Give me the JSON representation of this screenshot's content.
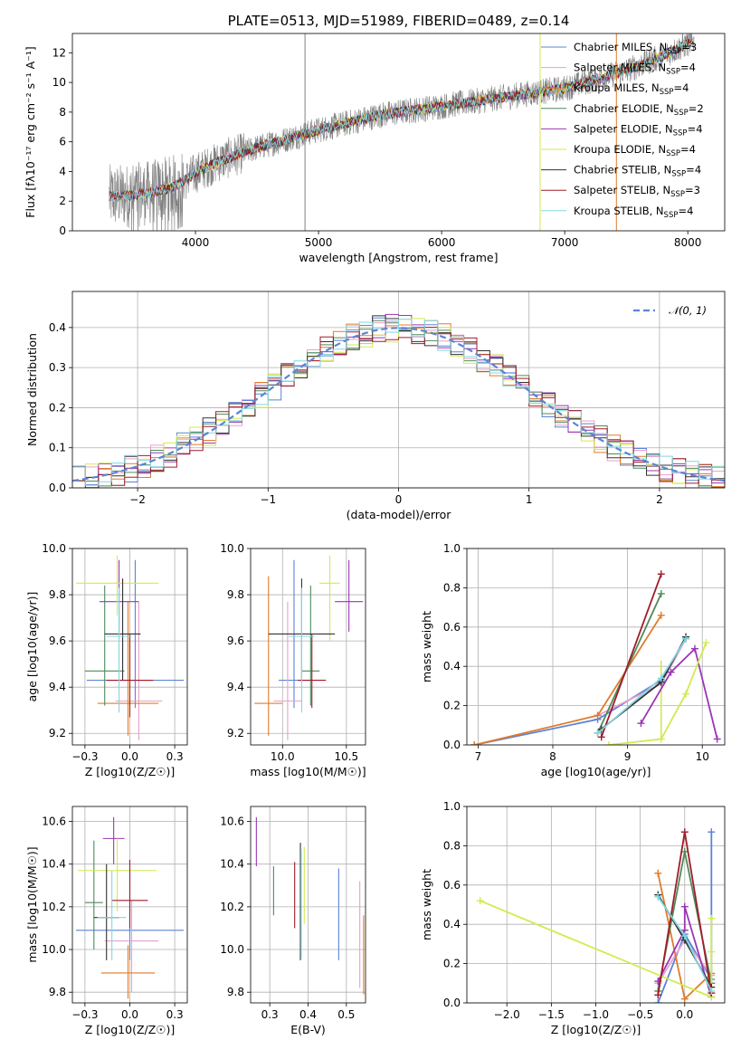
{
  "series": [
    {
      "name": "Chabrier MILES",
      "nssp": "3",
      "color": "#5b84d6"
    },
    {
      "name": "Salpeter MILES",
      "nssp": "4",
      "color": "#e8a0cc"
    },
    {
      "name": "Kroupa MILES",
      "nssp": "4",
      "color": "#e07b2c"
    },
    {
      "name": "Chabrier ELODIE",
      "nssp": "2",
      "color": "#4f8a5b"
    },
    {
      "name": "Salpeter ELODIE",
      "nssp": "4",
      "color": "#9b36b5"
    },
    {
      "name": "Kroupa ELODIE",
      "nssp": "4",
      "color": "#d2ea4e"
    },
    {
      "name": "Chabrier STELIB",
      "nssp": "4",
      "color": "#333333"
    },
    {
      "name": "Salpeter STELIB",
      "nssp": "3",
      "color": "#a01c2a"
    },
    {
      "name": "Kroupa STELIB",
      "nssp": "4",
      "color": "#83d6e1"
    }
  ],
  "chart_data": [
    {
      "id": "spectrum",
      "type": "line",
      "title": "PLATE=0513, MJD=51989, FIBERID=0489, z=0.14",
      "xlabel": "wavelength [Angstrom, rest frame]",
      "ylabel": "Flux [fλ10⁻¹⁷ erg cm⁻² s⁻¹ A⁻¹]",
      "xlim": [
        3000,
        8300
      ],
      "ylim": [
        0,
        13.3
      ],
      "xticks": [
        4000,
        5000,
        6000,
        7000,
        8000
      ],
      "yticks": [
        0,
        2,
        4,
        6,
        8,
        10,
        12
      ],
      "data_color": "#808080",
      "continuum": {
        "x": [
          3300,
          3500,
          3650,
          3800,
          3900,
          4000,
          4200,
          4500,
          5000,
          5500,
          6000,
          6500,
          7000,
          7500,
          7800,
          8050
        ],
        "y": [
          2.3,
          2.4,
          2.6,
          2.9,
          3.3,
          3.9,
          4.7,
          5.6,
          6.8,
          7.8,
          8.4,
          9.0,
          9.6,
          10.8,
          11.8,
          12.8
        ]
      },
      "vertical_lines": [
        {
          "x": 4890,
          "color": "#808080"
        },
        {
          "x": 6800,
          "color": "#d2ea4e"
        },
        {
          "x": 7420,
          "color": "#e07b2c"
        }
      ],
      "legend_position": "top-right",
      "grid": false
    },
    {
      "id": "residuals",
      "type": "histogram",
      "xlabel": "(data-model)/error",
      "ylabel": "Normed distribution",
      "xlim": [
        -2.5,
        2.5
      ],
      "ylim": [
        0,
        0.49
      ],
      "xticks": [
        -2,
        -1,
        0,
        1,
        2
      ],
      "yticks": [
        0.0,
        0.1,
        0.2,
        0.3,
        0.4
      ],
      "bin_width": 0.1,
      "reference": {
        "label": "𝒩(0, 1)",
        "mean": 0,
        "sigma": 1,
        "color": "#5b84d6"
      },
      "grid": true
    },
    {
      "id": "age-vs-Z",
      "type": "scatter",
      "xlabel": "Z [log10(Z/Z☉)]",
      "ylabel": "age  [log10(age/yr)]",
      "xlim": [
        -0.32,
        0.32
      ],
      "ylim": [
        9.15,
        10.0
      ],
      "xticks": [
        -0.25,
        0.0,
        0.25
      ],
      "yticks": [
        9.2,
        9.4,
        9.6,
        9.8,
        10.0
      ],
      "points": [
        {
          "s": 0,
          "x": 0.03,
          "y": 9.43,
          "xe": 0.27,
          "ylo": 9.31,
          "yhi": 9.95
        },
        {
          "s": 1,
          "x": 0.05,
          "y": 9.34,
          "xe": 0.13,
          "ylo": 9.17,
          "yhi": 9.77
        },
        {
          "s": 2,
          "x": -0.01,
          "y": 9.33,
          "xe": 0.17,
          "ylo": 9.19,
          "yhi": 9.77
        },
        {
          "s": 3,
          "x": -0.14,
          "y": 9.47,
          "xe": 0.11,
          "ylo": 9.32,
          "yhi": 9.84
        },
        {
          "s": 4,
          "x": -0.06,
          "y": 9.77,
          "xe": 0.11,
          "ylo": 9.64,
          "yhi": 9.95
        },
        {
          "s": 5,
          "x": -0.07,
          "y": 9.85,
          "xe": 0.23,
          "ylo": 9.71,
          "yhi": 9.97
        },
        {
          "s": 6,
          "x": -0.04,
          "y": 9.63,
          "xe": 0.1,
          "ylo": 9.43,
          "yhi": 9.87
        },
        {
          "s": 7,
          "x": 0.0,
          "y": 9.43,
          "xe": 0.13,
          "ylo": 9.27,
          "yhi": 9.63
        },
        {
          "s": 8,
          "x": -0.06,
          "y": 9.62,
          "xe": 0.07,
          "ylo": 9.29,
          "yhi": 9.83
        }
      ]
    },
    {
      "id": "age-vs-mass",
      "type": "scatter",
      "xlabel": "mass [log10(M/M☉)]",
      "ylabel": "",
      "xlim": [
        9.75,
        10.65
      ],
      "ylim": [
        9.15,
        10.0
      ],
      "xticks": [
        10.0,
        10.5
      ],
      "yticks": [
        9.2,
        9.4,
        9.6,
        9.8,
        10.0
      ],
      "points": [
        {
          "s": 0,
          "x": 10.09,
          "y": 9.43,
          "xe": 0.12,
          "ylo": 9.31,
          "yhi": 9.95
        },
        {
          "s": 1,
          "x": 10.04,
          "y": 9.34,
          "xe": 0.11,
          "ylo": 9.17,
          "yhi": 9.77
        },
        {
          "s": 2,
          "x": 9.89,
          "y": 9.33,
          "xe": 0.11,
          "ylo": 9.19,
          "yhi": 9.88
        },
        {
          "s": 3,
          "x": 10.22,
          "y": 9.47,
          "xe": 0.07,
          "ylo": 9.32,
          "yhi": 9.84
        },
        {
          "s": 4,
          "x": 10.52,
          "y": 9.77,
          "xe": 0.11,
          "ylo": 9.64,
          "yhi": 9.95
        },
        {
          "s": 5,
          "x": 10.37,
          "y": 9.85,
          "xe": 0.08,
          "ylo": 9.6,
          "yhi": 9.97
        },
        {
          "s": 6,
          "x": 10.15,
          "y": 9.63,
          "xe": 0.26,
          "ylo": 9.43,
          "yhi": 9.87
        },
        {
          "s": 7,
          "x": 10.23,
          "y": 9.43,
          "xe": 0.11,
          "ylo": 9.31,
          "yhi": 9.63
        },
        {
          "s": 8,
          "x": 10.15,
          "y": 9.62,
          "xe": 0.1,
          "ylo": 9.29,
          "yhi": 9.83
        }
      ]
    },
    {
      "id": "weights-vs-age",
      "type": "line",
      "xlabel": "age  [log10(age/yr)]",
      "ylabel": "mass weight",
      "xlim": [
        6.85,
        10.3
      ],
      "ylim": [
        0,
        1.0
      ],
      "xticks": [
        7,
        8,
        9,
        10
      ],
      "yticks": [
        0.0,
        0.2,
        0.4,
        0.6,
        0.8,
        1.0
      ],
      "grid": true,
      "series_points": [
        {
          "s": 0,
          "x": [
            6.95,
            8.6,
            9.45,
            9.78
          ],
          "y": [
            0.0,
            0.13,
            0.33,
            0.54
          ]
        },
        {
          "s": 1,
          "x": [
            8.6,
            9.45,
            9.78
          ],
          "y": [
            0.15,
            0.31,
            0.54
          ]
        },
        {
          "s": 2,
          "x": [
            6.95,
            8.6,
            9.45
          ],
          "y": [
            0.0,
            0.15,
            0.66
          ]
        },
        {
          "s": 3,
          "x": [
            8.6,
            9.45
          ],
          "y": [
            0.06,
            0.77
          ]
        },
        {
          "s": 4,
          "x": [
            9.18,
            9.58,
            9.9,
            10.2
          ],
          "y": [
            0.11,
            0.37,
            0.49,
            0.03
          ]
        },
        {
          "s": 5,
          "x": [
            8.75,
            9.45,
            9.78,
            10.05
          ],
          "y": [
            0.0,
            0.03,
            0.26,
            0.52
          ]
        },
        {
          "s": 6,
          "x": [
            8.65,
            9.45,
            9.78
          ],
          "y": [
            0.08,
            0.32,
            0.55
          ]
        },
        {
          "s": 7,
          "x": [
            8.65,
            9.45
          ],
          "y": [
            0.04,
            0.87
          ]
        },
        {
          "s": 8,
          "x": [
            8.6,
            9.45,
            9.78
          ],
          "y": [
            0.06,
            0.34,
            0.54
          ]
        }
      ],
      "vertical_lines": [
        {
          "x": 9.45,
          "color": "#d2ea4e",
          "from": 0.03,
          "to": 0.43
        }
      ]
    },
    {
      "id": "mass-vs-Z",
      "type": "scatter",
      "xlabel": "Z [log10(Z/Z☉)]",
      "ylabel": "mass [log10(M/M☉)]",
      "xlim": [
        -0.32,
        0.32
      ],
      "ylim": [
        9.75,
        10.67
      ],
      "xticks": [
        -0.25,
        0.0,
        0.25
      ],
      "yticks": [
        9.8,
        10.0,
        10.2,
        10.4,
        10.6
      ],
      "points": [
        {
          "s": 0,
          "x": 0.0,
          "y": 10.09,
          "xe": 0.3,
          "ylo": 9.95,
          "yhi": 10.38
        },
        {
          "s": 1,
          "x": 0.01,
          "y": 10.04,
          "xe": 0.15,
          "ylo": 9.8,
          "yhi": 10.23
        },
        {
          "s": 2,
          "x": -0.01,
          "y": 9.89,
          "xe": 0.15,
          "ylo": 9.77,
          "yhi": 10.02
        },
        {
          "s": 3,
          "x": -0.2,
          "y": 10.22,
          "xe": 0.05,
          "ylo": 10.0,
          "yhi": 10.51
        },
        {
          "s": 4,
          "x": -0.09,
          "y": 10.52,
          "xe": 0.06,
          "ylo": 10.4,
          "yhi": 10.62
        },
        {
          "s": 5,
          "x": -0.07,
          "y": 10.37,
          "xe": 0.22,
          "ylo": 10.18,
          "yhi": 10.52
        },
        {
          "s": 6,
          "x": -0.13,
          "y": 10.15,
          "xe": 0.07,
          "ylo": 9.95,
          "yhi": 10.4
        },
        {
          "s": 7,
          "x": 0.0,
          "y": 10.23,
          "xe": 0.1,
          "ylo": 10.1,
          "yhi": 10.42
        },
        {
          "s": 8,
          "x": -0.1,
          "y": 10.15,
          "xe": 0.08,
          "ylo": 9.95,
          "yhi": 10.37
        }
      ]
    },
    {
      "id": "mass-vs-ebv",
      "type": "scatter",
      "xlabel": "E(B-V)",
      "ylabel": "",
      "xlim": [
        0.25,
        0.55
      ],
      "ylim": [
        9.75,
        10.67
      ],
      "xticks": [
        0.3,
        0.4,
        0.5
      ],
      "yticks": [
        9.8,
        10.0,
        10.2,
        10.4,
        10.6
      ],
      "points": [
        {
          "s": 0,
          "x": 0.48,
          "y": 10.09,
          "ylo": 9.95,
          "yhi": 10.38
        },
        {
          "s": 1,
          "x": 0.535,
          "y": 10.04,
          "ylo": 9.82,
          "yhi": 10.32
        },
        {
          "s": 2,
          "x": 0.545,
          "y": 9.89,
          "ylo": 9.79,
          "yhi": 10.16
        },
        {
          "s": 3,
          "x": 0.31,
          "y": 10.22,
          "ylo": 10.16,
          "yhi": 10.39
        },
        {
          "s": 4,
          "x": 0.265,
          "y": 10.52,
          "ylo": 10.39,
          "yhi": 10.62
        },
        {
          "s": 5,
          "x": 0.39,
          "y": 10.37,
          "ylo": 10.12,
          "yhi": 10.48
        },
        {
          "s": 6,
          "x": 0.38,
          "y": 10.15,
          "ylo": 9.95,
          "yhi": 10.5
        },
        {
          "s": 7,
          "x": 0.365,
          "y": 10.23,
          "ylo": 10.1,
          "yhi": 10.41
        },
        {
          "s": 8,
          "x": 0.382,
          "y": 10.15,
          "ylo": 9.96,
          "yhi": 10.47
        }
      ]
    },
    {
      "id": "weights-vs-Z",
      "type": "line",
      "xlabel": "Z [log10(Z/Z☉)]",
      "ylabel": "mass weight",
      "xlim": [
        -2.45,
        0.45
      ],
      "ylim": [
        0,
        1.0
      ],
      "xticks": [
        -2.0,
        -1.5,
        -1.0,
        -0.5,
        0.0
      ],
      "yticks": [
        0.0,
        0.2,
        0.4,
        0.6,
        0.8,
        1.0
      ],
      "grid": true,
      "series_points": [
        {
          "s": 0,
          "x": [
            -0.3,
            0.0,
            0.3,
            0.3
          ],
          "y": [
            0.0,
            0.35,
            0.12,
            0.87
          ]
        },
        {
          "s": 1,
          "x": [
            -0.3,
            0.0,
            0.3
          ],
          "y": [
            0.1,
            0.32,
            0.14
          ]
        },
        {
          "s": 2,
          "x": [
            -0.3,
            0.0,
            0.3
          ],
          "y": [
            0.66,
            0.02,
            0.15
          ]
        },
        {
          "s": 3,
          "x": [
            -0.3,
            0.0,
            0.3
          ],
          "y": [
            0.06,
            0.77,
            0.1
          ]
        },
        {
          "s": 4,
          "x": [
            -0.3,
            0.0,
            0.0,
            0.3
          ],
          "y": [
            0.11,
            0.37,
            0.49,
            0.03
          ]
        },
        {
          "s": 5,
          "x": [
            -2.3,
            0.3,
            0.3,
            0.3
          ],
          "y": [
            0.52,
            0.03,
            0.26,
            0.43
          ]
        },
        {
          "s": 6,
          "x": [
            -0.3,
            0.0,
            0.3
          ],
          "y": [
            0.55,
            0.32,
            0.08
          ]
        },
        {
          "s": 7,
          "x": [
            -0.3,
            0.0,
            0.3
          ],
          "y": [
            0.04,
            0.87,
            0.05
          ]
        },
        {
          "s": 8,
          "x": [
            -0.3,
            0.0,
            0.3
          ],
          "y": [
            0.54,
            0.34,
            0.06
          ]
        }
      ]
    }
  ]
}
